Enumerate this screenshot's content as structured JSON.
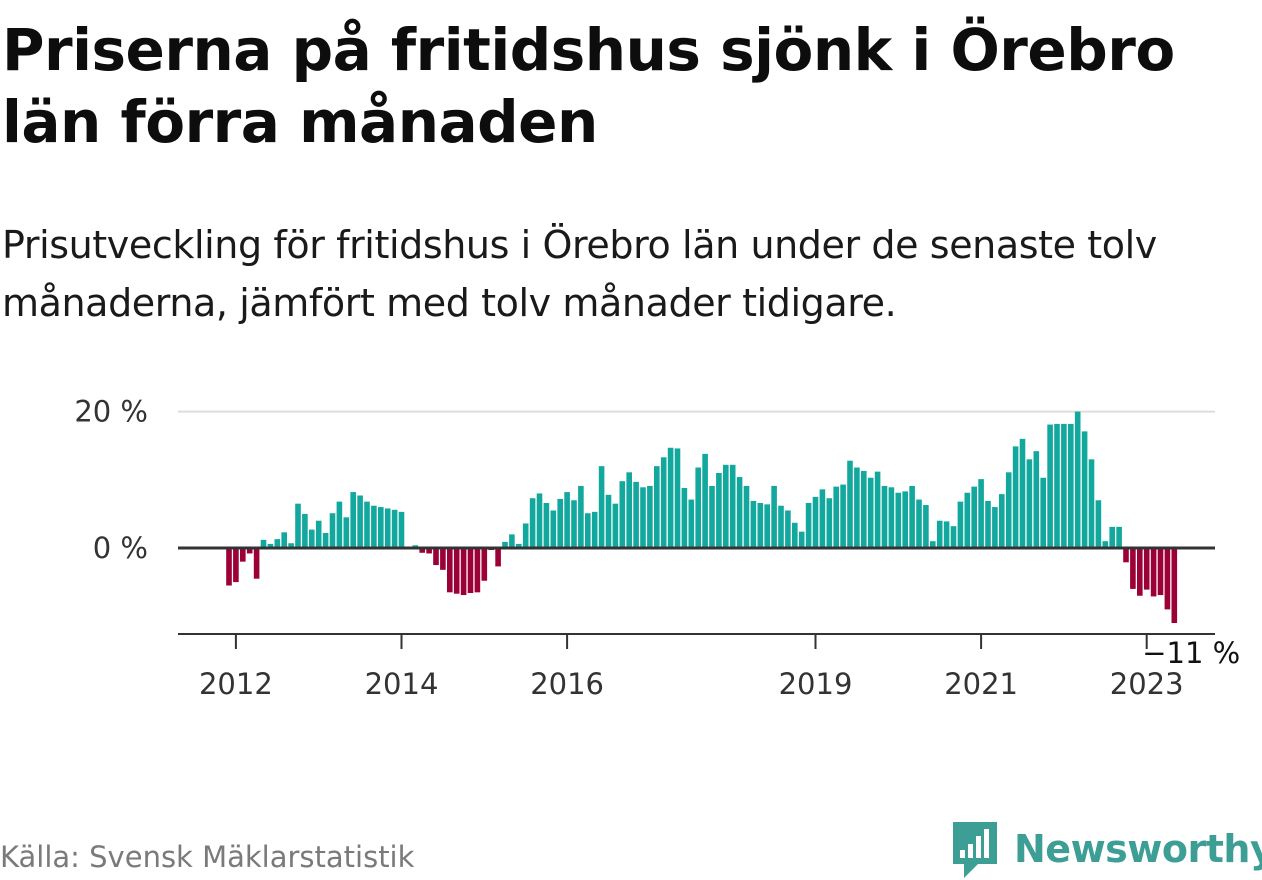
{
  "header": {
    "title": "Priserna på fritidshus sjönk i Örebro län förra månaden",
    "subtitle": "Prisutveckling för fritidshus i Örebro län under de senaste tolv månaderna, jämfört med tolv månader tidigare."
  },
  "footer": {
    "source": "Källa: Svensk Mäklarstatistik",
    "brand": "Newsworthy",
    "brand_icon": "bar-chart-speech-bubble-icon"
  },
  "colors": {
    "positive": "#13a89e",
    "negative": "#9b0037",
    "brand": "#3d9e96",
    "zero_line": "#333333",
    "grid": "#dddddd"
  },
  "chart_data": {
    "type": "bar",
    "title": "",
    "xlabel": "",
    "ylabel": "",
    "ylim": [
      -12.5,
      21
    ],
    "x_range": [
      "2011-07",
      "2023-10"
    ],
    "grid": true,
    "y_ticks": [
      {
        "value": 0,
        "label": "0 %"
      },
      {
        "value": 20,
        "label": "20 %"
      }
    ],
    "x_ticks": [
      {
        "date": "2012-01",
        "label": "2012"
      },
      {
        "date": "2014-01",
        "label": "2014"
      },
      {
        "date": "2016-01",
        "label": "2016"
      },
      {
        "date": "2019-01",
        "label": "2019"
      },
      {
        "date": "2021-01",
        "label": "2021"
      },
      {
        "date": "2023-01",
        "label": "2023"
      }
    ],
    "annotation": {
      "date": "2023-06",
      "value": -11,
      "label": "−11 %"
    },
    "start_date": "2011-12",
    "values": [
      -5.5,
      -5.0,
      -2.0,
      -0.8,
      -4.5,
      1.2,
      0.6,
      1.3,
      2.3,
      0.7,
      6.5,
      5.0,
      2.7,
      4.0,
      2.2,
      5.1,
      6.8,
      4.5,
      8.2,
      7.7,
      6.8,
      6.2,
      6.0,
      5.8,
      5.6,
      5.3,
      0.0,
      0.4,
      -0.7,
      -0.8,
      -2.5,
      -3.2,
      -6.5,
      -6.7,
      -6.9,
      -6.6,
      -6.5,
      -4.8,
      -0.3,
      -2.7,
      0.9,
      2.0,
      0.6,
      3.6,
      7.3,
      8.0,
      6.6,
      5.5,
      7.2,
      8.2,
      7.0,
      9.1,
      5.1,
      5.3,
      12.0,
      7.8,
      6.5,
      9.8,
      11.1,
      9.7,
      8.9,
      9.1,
      12.0,
      13.3,
      14.7,
      14.6,
      8.8,
      7.1,
      11.8,
      13.8,
      9.1,
      11.0,
      12.2,
      12.2,
      10.4,
      9.1,
      6.9,
      6.6,
      6.4,
      9.1,
      6.2,
      5.5,
      3.7,
      2.4,
      6.6,
      7.5,
      8.6,
      7.3,
      9.0,
      9.3,
      12.8,
      11.8,
      11.3,
      10.3,
      11.2,
      9.1,
      8.9,
      8.1,
      8.3,
      9.1,
      7.1,
      6.3,
      1.0,
      4.0,
      3.9,
      3.2,
      6.8,
      8.1,
      9.0,
      10.1,
      6.9,
      6.0,
      7.9,
      11.1,
      14.9,
      16.0,
      13.0,
      14.2,
      10.3,
      18.1,
      18.2,
      18.2,
      18.2,
      20.0,
      17.1,
      13.0,
      7.0,
      1.0,
      3.1,
      3.1,
      -2.1,
      -6.0,
      -7.0,
      -6.1,
      -7.1,
      -6.9,
      -9.0,
      -11.0
    ]
  }
}
